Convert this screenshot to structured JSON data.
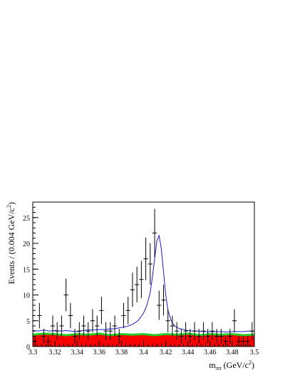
{
  "chart_data": {
    "type": "scatter",
    "title": "",
    "xlabel_main": "m",
    "xlabel_sub": "ππ",
    "xlabel_unit": " (GeV/c",
    "xlabel_sup": "2",
    "xlabel_close": ")",
    "ylabel_main": "Events / (0.004 GeV/c",
    "ylabel_sup": "2",
    "ylabel_close": ")",
    "xlim": [
      3.3,
      3.5
    ],
    "ylim": [
      0,
      28
    ],
    "x_ticks": [
      3.3,
      3.32,
      3.34,
      3.36,
      3.38,
      3.4,
      3.42,
      3.44,
      3.46,
      3.48,
      3.5
    ],
    "x_tick_labels": [
      "3.3",
      "3.32",
      "3.34",
      "3.36",
      "3.38",
      "3.4",
      "3.42",
      "3.44",
      "3.46",
      "3.48",
      "3.5"
    ],
    "y_ticks": [
      0,
      5,
      10,
      15,
      20,
      25
    ],
    "y_tick_labels": [
      "0",
      "5",
      "10",
      "15",
      "20",
      "25"
    ],
    "grid": false,
    "legend": "none",
    "colors": {
      "data": "#000000",
      "fit": "#1a1acc",
      "background_red": "#ff0000",
      "background_green": "#22cc22"
    },
    "series": [
      {
        "kind": "data_points",
        "x": [
          3.302,
          3.306,
          3.31,
          3.314,
          3.318,
          3.322,
          3.326,
          3.33,
          3.334,
          3.338,
          3.342,
          3.346,
          3.35,
          3.354,
          3.358,
          3.362,
          3.366,
          3.37,
          3.374,
          3.378,
          3.382,
          3.386,
          3.39,
          3.394,
          3.398,
          3.402,
          3.406,
          3.41,
          3.414,
          3.418,
          3.422,
          3.426,
          3.43,
          3.434,
          3.438,
          3.442,
          3.446,
          3.45,
          3.454,
          3.458,
          3.462,
          3.466,
          3.47,
          3.474,
          3.478,
          3.482,
          3.486,
          3.49,
          3.494,
          3.498
        ],
        "y": [
          1,
          6,
          2,
          1,
          4,
          3,
          4,
          10,
          6,
          2,
          3,
          4,
          3,
          5,
          4,
          7,
          3,
          3,
          4,
          2,
          6,
          7,
          11,
          12,
          13,
          17,
          16,
          22,
          8,
          9,
          5,
          4,
          3,
          2,
          3,
          2,
          3,
          2,
          3,
          2,
          3,
          2,
          2,
          1,
          2,
          5,
          1,
          1,
          1,
          3
        ],
        "yerr": [
          1.0,
          2.45,
          1.41,
          1.0,
          2.0,
          1.73,
          2.0,
          3.16,
          2.45,
          1.41,
          1.73,
          2.0,
          1.73,
          2.24,
          2.0,
          2.65,
          1.73,
          1.73,
          2.0,
          1.41,
          2.45,
          2.65,
          3.32,
          3.46,
          3.61,
          4.12,
          4.0,
          4.69,
          2.83,
          3.0,
          2.24,
          2.0,
          1.73,
          1.41,
          1.73,
          1.41,
          1.73,
          1.41,
          1.73,
          1.41,
          1.73,
          1.41,
          1.41,
          1.0,
          1.41,
          2.24,
          1.0,
          1.0,
          1.0,
          1.73
        ]
      },
      {
        "kind": "fit_curve",
        "x": [
          3.3,
          3.305,
          3.31,
          3.315,
          3.32,
          3.325,
          3.33,
          3.335,
          3.34,
          3.345,
          3.35,
          3.355,
          3.36,
          3.365,
          3.37,
          3.375,
          3.38,
          3.385,
          3.39,
          3.395,
          3.4,
          3.403,
          3.406,
          3.408,
          3.41,
          3.412,
          3.414,
          3.416,
          3.418,
          3.42,
          3.422,
          3.425,
          3.428,
          3.432,
          3.436,
          3.44,
          3.445,
          3.45,
          3.455,
          3.46,
          3.465,
          3.47,
          3.475,
          3.48,
          3.485,
          3.49,
          3.495,
          3.5
        ],
        "y": [
          3.1,
          3.0,
          3.2,
          3.0,
          3.1,
          3.0,
          3.1,
          3.0,
          2.9,
          3.1,
          3.2,
          3.2,
          3.3,
          3.3,
          3.4,
          3.5,
          3.7,
          3.9,
          4.3,
          5.0,
          6.5,
          8.0,
          10.5,
          13.5,
          17.0,
          20.5,
          21.5,
          19.0,
          14.5,
          10.0,
          7.0,
          5.0,
          4.0,
          3.5,
          3.3,
          3.1,
          3.0,
          3.0,
          2.9,
          2.9,
          2.9,
          2.9,
          2.8,
          2.9,
          2.9,
          2.9,
          3.0,
          3.0
        ]
      },
      {
        "kind": "background_red",
        "x": [
          3.3,
          3.31,
          3.32,
          3.33,
          3.34,
          3.35,
          3.36,
          3.37,
          3.38,
          3.39,
          3.4,
          3.41,
          3.42,
          3.43,
          3.44,
          3.45,
          3.46,
          3.47,
          3.48,
          3.49,
          3.5
        ],
        "y": [
          2.1,
          2.3,
          2.2,
          2.0,
          2.2,
          2.1,
          2.3,
          2.0,
          2.2,
          2.1,
          2.2,
          2.0,
          2.2,
          2.1,
          2.3,
          2.0,
          2.2,
          2.1,
          2.2,
          2.0,
          2.1
        ]
      },
      {
        "kind": "background_green",
        "x": [
          3.3,
          3.31,
          3.32,
          3.33,
          3.34,
          3.35,
          3.36,
          3.37,
          3.38,
          3.39,
          3.4,
          3.41,
          3.42,
          3.43,
          3.44,
          3.45,
          3.46,
          3.47,
          3.48,
          3.49,
          3.5
        ],
        "y": [
          2.5,
          2.7,
          2.6,
          2.4,
          2.6,
          2.5,
          2.7,
          2.4,
          2.6,
          2.5,
          2.6,
          2.4,
          2.6,
          2.5,
          2.7,
          2.4,
          2.6,
          2.5,
          2.6,
          2.4,
          2.5
        ]
      }
    ]
  }
}
